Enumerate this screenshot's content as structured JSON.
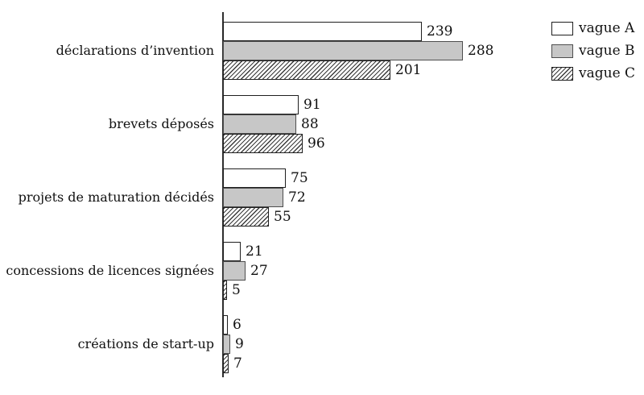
{
  "chart_data": {
    "type": "bar",
    "orientation": "horizontal",
    "title": "",
    "xlabel": "",
    "ylabel": "",
    "categories": [
      "déclarations d’invention",
      "brevets déposés",
      "projets de maturation décidés",
      "concessions de licences signées",
      "créations de start-up"
    ],
    "series": [
      {
        "name": "vague A",
        "style": "white",
        "values": [
          239,
          91,
          75,
          21,
          6
        ]
      },
      {
        "name": "vague B",
        "style": "gray",
        "values": [
          288,
          88,
          72,
          27,
          9
        ]
      },
      {
        "name": "vague C",
        "style": "hatch",
        "values": [
          201,
          96,
          55,
          5,
          7
        ]
      }
    ],
    "value_labels_shown": true,
    "legend_position": "top-right",
    "grid": false,
    "x_axis_ticks_shown": false,
    "colors": {
      "bar_white": "#ffffff",
      "bar_gray": "#c7c7c7",
      "hatch_line": "#3a3a3a",
      "border_dark": "#1f1f1f",
      "border_gray": "#4e4e4e",
      "axis": "#2f2f2f",
      "text": "#111111"
    }
  }
}
